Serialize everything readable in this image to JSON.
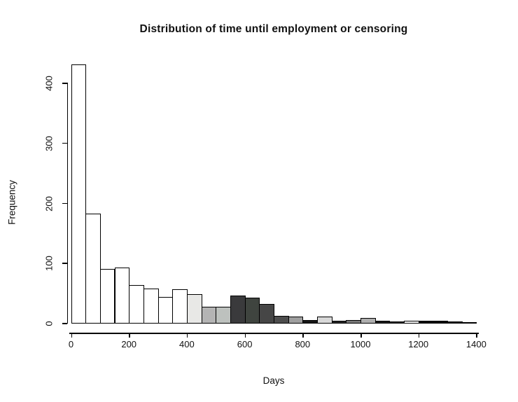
{
  "chart_data": {
    "type": "bar",
    "subtype": "histogram",
    "title": "Distribution of time until employment or censoring",
    "xlabel": "Days",
    "ylabel": "Frequency",
    "bin_start": 0,
    "bin_width": 50,
    "counts": [
      430,
      182,
      90,
      92,
      63,
      57,
      43,
      56,
      48,
      27,
      27,
      46,
      42,
      32,
      12,
      10,
      5,
      10,
      3,
      5,
      8,
      4,
      2,
      3,
      4,
      4,
      2,
      1
    ],
    "bar_colors": [
      "#ffffff",
      "#ffffff",
      "#ffffff",
      "#ffffff",
      "#ffffff",
      "#ffffff",
      "#ffffff",
      "#ffffff",
      "#e8e8e6",
      "#b4b4b4",
      "#bdc1be",
      "#3a3a3c",
      "#3f443f",
      "#464646",
      "#4d4d4d",
      "#9f9f9f",
      "#161616",
      "#d8d8d8",
      "#262626",
      "#7a7a7a",
      "#aeaeae",
      "#1c1c1c",
      "#2e2e2e",
      "#fafafa",
      "#0f0f0f",
      "#0f0f0f",
      "#0f0f0f",
      "#0f0f0f"
    ],
    "bar_border_color": "#000000",
    "x_ticks": [
      0,
      200,
      400,
      600,
      800,
      1000,
      1200,
      1400
    ],
    "y_ticks": [
      0,
      100,
      200,
      300,
      400
    ],
    "xlim": [
      0,
      1400
    ],
    "ylim": [
      0,
      430
    ],
    "grid": false,
    "legend": "none",
    "background_color": "#ffffff",
    "text_color": "#111111"
  }
}
